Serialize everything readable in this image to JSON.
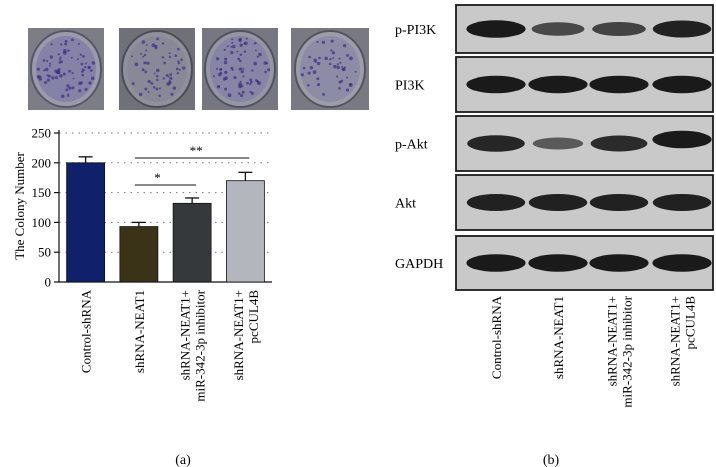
{
  "panels": {
    "a": {
      "caption": "(a)"
    },
    "b": {
      "caption": "(b)"
    }
  },
  "chart_data": {
    "type": "bar",
    "title": "",
    "xlabel": "",
    "ylabel": "The Colony Number",
    "ylim": [
      0,
      250
    ],
    "yticks": [
      0,
      50,
      100,
      150,
      200,
      250
    ],
    "grid": true,
    "categories": [
      [
        "Control-shRNA"
      ],
      [
        "shRNA-NEAT1"
      ],
      [
        "shRNA-NEAT1+",
        "miR-342-3p inhibitor"
      ],
      [
        "shRNA-NEAT1+",
        "pcCUL4B"
      ]
    ],
    "values": [
      200,
      93,
      132,
      170
    ],
    "errors": [
      10,
      7,
      9,
      14
    ],
    "bar_colors": [
      "#10206b",
      "#3a3318",
      "#36393c",
      "#b3b6bd"
    ],
    "significance": [
      {
        "from": 1,
        "to": 2,
        "label": "*"
      },
      {
        "from": 1,
        "to": 3,
        "label": "**"
      }
    ]
  },
  "western_blot": {
    "bands": [
      {
        "label": "p-PI3K",
        "intensities": [
          0.95,
          0.55,
          0.6,
          0.9
        ]
      },
      {
        "label": "PI3K",
        "intensities": [
          0.95,
          0.95,
          0.95,
          0.95
        ]
      },
      {
        "label": "p-Akt",
        "intensities": [
          0.85,
          0.4,
          0.8,
          0.95
        ]
      },
      {
        "label": "Akt",
        "intensities": [
          0.9,
          0.9,
          0.9,
          0.9
        ]
      },
      {
        "label": "GAPDH",
        "intensities": [
          0.95,
          0.95,
          0.95,
          0.95
        ]
      }
    ],
    "lanes": [
      [
        "Control-shRNA"
      ],
      [
        "shRNA-NEAT1"
      ],
      [
        "shRNA-NEAT1+",
        "miR-342-3p inhibitor"
      ],
      [
        "shRNA-NEAT1+",
        "pcCUL4B"
      ]
    ]
  }
}
